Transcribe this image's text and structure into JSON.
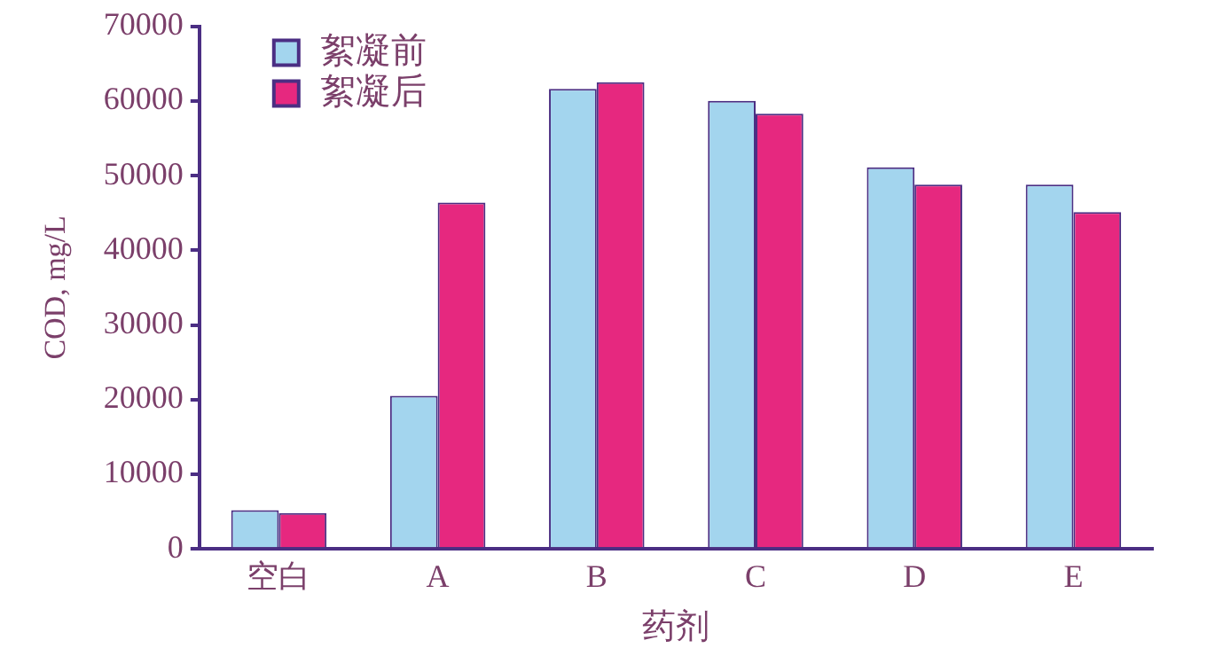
{
  "chart_data": {
    "type": "bar",
    "xlabel": "药剂",
    "ylabel": "COD, mg/L",
    "categories": [
      "空白",
      "A",
      "B",
      "C",
      "D",
      "E"
    ],
    "series": [
      {
        "name": "絮凝前",
        "color": "#a3d5ee",
        "values": [
          5200,
          20500,
          61600,
          60000,
          51100,
          48800
        ]
      },
      {
        "name": "絮凝后",
        "color": "#e6287f",
        "values": [
          4800,
          46400,
          62500,
          58300,
          48800,
          45100
        ]
      }
    ],
    "ylim": [
      0,
      70000
    ],
    "yticks": [
      0,
      10000,
      20000,
      30000,
      40000,
      50000,
      60000,
      70000
    ],
    "grid": false,
    "legend": "top left"
  }
}
